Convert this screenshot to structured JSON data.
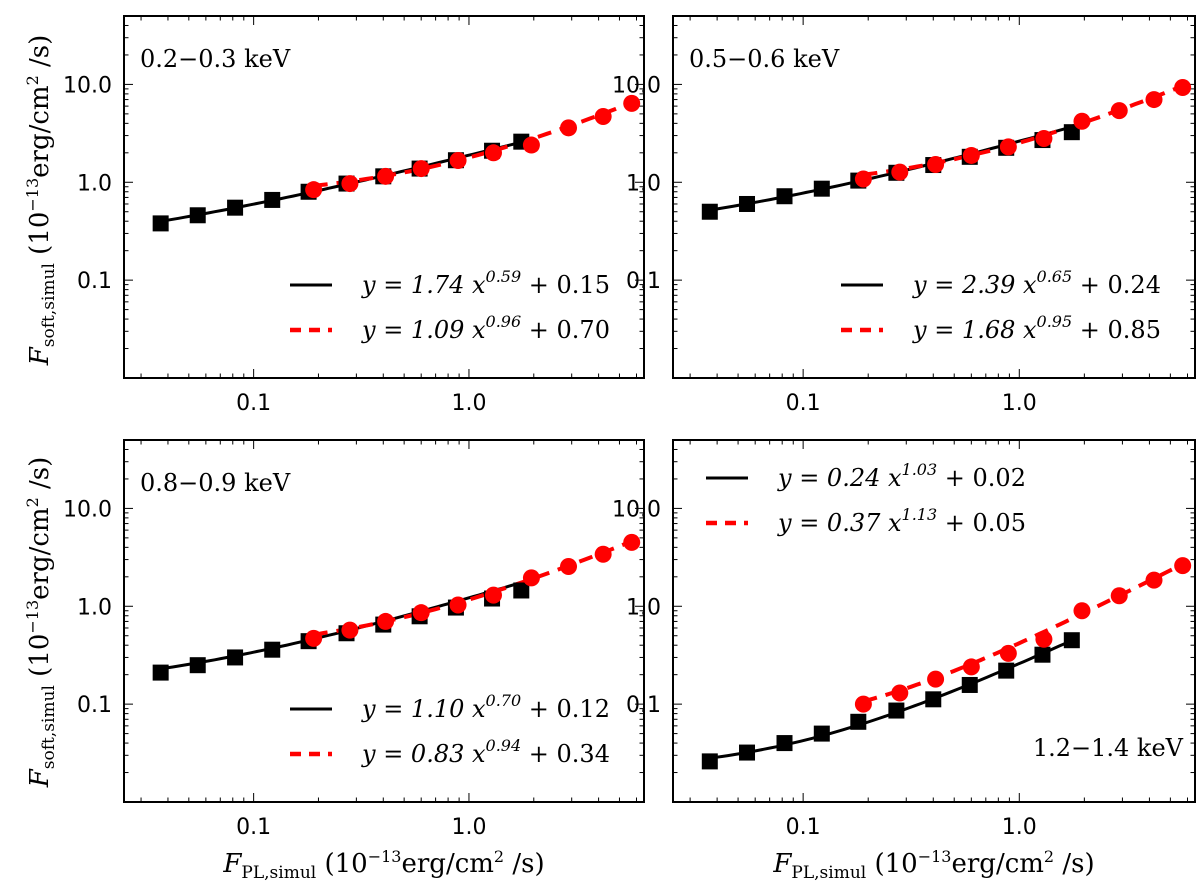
{
  "figure": {
    "ylabel": "F_soft,simul (10^-13 erg/cm^2 /s)",
    "xlabel": "F_PL,simul (10^-13 erg/cm^2 /s)",
    "ylabel_parts": {
      "main": "F",
      "sub": "soft,simul",
      "unit_open": " (10",
      "exp": "−13",
      "unit_rest": "erg/cm",
      "sq": "2",
      "unit_close": " /s)"
    },
    "xlabel_parts": {
      "main": "F",
      "sub": "PL,simul",
      "unit_open": " (10",
      "exp": "−13",
      "unit_rest": "erg/cm",
      "sq": "2",
      "unit_close": " /s)"
    }
  },
  "colors": {
    "fit_black": "#000000",
    "fit_red": "#ff0000"
  },
  "chart_data": [
    {
      "type": "scatter",
      "panel_label": "0.2−0.3 keV",
      "label_position": "top-left",
      "legend_position": "bottom-right",
      "xscale": "log",
      "yscale": "log",
      "xlim": [
        0.025,
        6.5
      ],
      "ylim": [
        0.01,
        50
      ],
      "xticks": [
        0.1,
        1.0
      ],
      "xtick_labels": [
        "0.1",
        "1.0"
      ],
      "yticks": [
        0.1,
        1.0,
        10.0
      ],
      "ytick_labels": [
        "0.1",
        "1.0",
        "10.0"
      ],
      "series": [
        {
          "name": "squares",
          "marker": "square",
          "color": "#000000",
          "x": [
            0.037,
            0.055,
            0.082,
            0.122,
            0.18,
            0.27,
            0.4,
            0.59,
            0.87,
            1.28,
            1.75
          ],
          "y": [
            0.38,
            0.46,
            0.55,
            0.66,
            0.8,
            0.97,
            1.15,
            1.38,
            1.68,
            2.1,
            2.6
          ]
        },
        {
          "name": "circles",
          "marker": "circle",
          "color": "#ff0000",
          "x": [
            0.19,
            0.28,
            0.41,
            0.6,
            0.89,
            1.3,
            1.95,
            2.9,
            4.2,
            5.7
          ],
          "y": [
            0.84,
            0.97,
            1.15,
            1.38,
            1.67,
            2.0,
            2.4,
            3.6,
            4.7,
            6.4
          ]
        }
      ],
      "fits": [
        {
          "name": "solid",
          "style": "solid",
          "color": "#000000",
          "a": 1.74,
          "b": 0.59,
          "c": 0.15,
          "x_range": [
            0.037,
            1.75
          ],
          "label": {
            "coef": "y = 1.74 x",
            "exp": "0.59",
            "offset": " + 0.15"
          }
        },
        {
          "name": "dashed",
          "style": "dashed",
          "color": "#ff0000",
          "a": 1.09,
          "b": 0.96,
          "c": 0.7,
          "x_range": [
            0.19,
            5.7
          ],
          "label": {
            "coef": "y = 1.09 x",
            "exp": "0.96",
            "offset": " + 0.70"
          }
        }
      ]
    },
    {
      "type": "scatter",
      "panel_label": "0.5−0.6 keV",
      "label_position": "top-left",
      "legend_position": "bottom-right",
      "xscale": "log",
      "yscale": "log",
      "xlim": [
        0.025,
        6.5
      ],
      "ylim": [
        0.01,
        50
      ],
      "xticks": [
        0.1,
        1.0
      ],
      "xtick_labels": [
        "0.1",
        "1.0"
      ],
      "yticks": [
        0.1,
        1.0,
        10.0
      ],
      "ytick_labels": [
        "0.1",
        "1.0",
        "10.0"
      ],
      "series": [
        {
          "name": "squares",
          "marker": "square",
          "color": "#000000",
          "x": [
            0.037,
            0.055,
            0.082,
            0.122,
            0.18,
            0.27,
            0.4,
            0.59,
            0.87,
            1.28,
            1.75
          ],
          "y": [
            0.5,
            0.6,
            0.72,
            0.86,
            1.04,
            1.25,
            1.5,
            1.82,
            2.25,
            2.7,
            3.25
          ]
        },
        {
          "name": "circles",
          "marker": "circle",
          "color": "#ff0000",
          "x": [
            0.19,
            0.28,
            0.41,
            0.6,
            0.89,
            1.3,
            1.95,
            2.9,
            4.2,
            5.7
          ],
          "y": [
            1.08,
            1.27,
            1.52,
            1.88,
            2.3,
            2.8,
            4.2,
            5.4,
            7.0,
            9.3
          ]
        }
      ],
      "fits": [
        {
          "name": "solid",
          "style": "solid",
          "color": "#000000",
          "a": 2.39,
          "b": 0.65,
          "c": 0.24,
          "x_range": [
            0.037,
            1.75
          ],
          "label": {
            "coef": "y = 2.39 x",
            "exp": "0.65",
            "offset": " + 0.24"
          }
        },
        {
          "name": "dashed",
          "style": "dashed",
          "color": "#ff0000",
          "a": 1.68,
          "b": 0.95,
          "c": 0.85,
          "x_range": [
            0.19,
            5.7
          ],
          "label": {
            "coef": "y = 1.68 x",
            "exp": "0.95",
            "offset": " + 0.85"
          }
        }
      ]
    },
    {
      "type": "scatter",
      "panel_label": "0.8−0.9 keV",
      "label_position": "top-left",
      "legend_position": "bottom-right",
      "xscale": "log",
      "yscale": "log",
      "xlim": [
        0.025,
        6.5
      ],
      "ylim": [
        0.01,
        50
      ],
      "xticks": [
        0.1,
        1.0
      ],
      "xtick_labels": [
        "0.1",
        "1.0"
      ],
      "yticks": [
        0.1,
        1.0,
        10.0
      ],
      "ytick_labels": [
        "0.1",
        "1.0",
        "10.0"
      ],
      "series": [
        {
          "name": "squares",
          "marker": "square",
          "color": "#000000",
          "x": [
            0.037,
            0.055,
            0.082,
            0.122,
            0.18,
            0.27,
            0.4,
            0.59,
            0.87,
            1.28,
            1.75
          ],
          "y": [
            0.21,
            0.25,
            0.3,
            0.36,
            0.44,
            0.53,
            0.65,
            0.79,
            0.97,
            1.2,
            1.45
          ]
        },
        {
          "name": "circles",
          "marker": "circle",
          "color": "#ff0000",
          "x": [
            0.19,
            0.28,
            0.41,
            0.6,
            0.89,
            1.3,
            1.95,
            2.9,
            4.2,
            5.7
          ],
          "y": [
            0.47,
            0.57,
            0.7,
            0.86,
            1.03,
            1.3,
            1.95,
            2.55,
            3.4,
            4.5
          ]
        }
      ],
      "fits": [
        {
          "name": "solid",
          "style": "solid",
          "color": "#000000",
          "a": 1.1,
          "b": 0.7,
          "c": 0.12,
          "x_range": [
            0.037,
            1.75
          ],
          "label": {
            "coef": "y = 1.10 x",
            "exp": "0.70",
            "offset": " + 0.12"
          }
        },
        {
          "name": "dashed",
          "style": "dashed",
          "color": "#ff0000",
          "a": 0.83,
          "b": 0.94,
          "c": 0.34,
          "x_range": [
            0.19,
            5.7
          ],
          "label": {
            "coef": "y = 0.83 x",
            "exp": "0.94",
            "offset": " + 0.34"
          }
        }
      ]
    },
    {
      "type": "scatter",
      "panel_label": "1.2−1.4 keV",
      "label_position": "bottom-right",
      "legend_position": "top-left",
      "xscale": "log",
      "yscale": "log",
      "xlim": [
        0.025,
        6.5
      ],
      "ylim": [
        0.01,
        50
      ],
      "xticks": [
        0.1,
        1.0
      ],
      "xtick_labels": [
        "0.1",
        "1.0"
      ],
      "yticks": [
        0.1,
        1.0,
        10.0
      ],
      "ytick_labels": [
        "0.1",
        "1.0",
        "10.0"
      ],
      "series": [
        {
          "name": "squares",
          "marker": "square",
          "color": "#000000",
          "x": [
            0.037,
            0.055,
            0.082,
            0.122,
            0.18,
            0.27,
            0.4,
            0.59,
            0.87,
            1.28,
            1.75
          ],
          "y": [
            0.026,
            0.032,
            0.04,
            0.05,
            0.066,
            0.086,
            0.112,
            0.157,
            0.22,
            0.32,
            0.45
          ]
        },
        {
          "name": "circles",
          "marker": "circle",
          "color": "#ff0000",
          "x": [
            0.19,
            0.28,
            0.41,
            0.6,
            0.89,
            1.3,
            1.95,
            2.9,
            4.2,
            5.7
          ],
          "y": [
            0.1,
            0.13,
            0.18,
            0.24,
            0.33,
            0.46,
            0.9,
            1.28,
            1.85,
            2.6
          ]
        }
      ],
      "fits": [
        {
          "name": "solid",
          "style": "solid",
          "color": "#000000",
          "a": 0.24,
          "b": 1.03,
          "c": 0.02,
          "x_range": [
            0.037,
            1.75
          ],
          "label": {
            "coef": "y = 0.24 x",
            "exp": "1.03",
            "offset": " + 0.02"
          }
        },
        {
          "name": "dashed",
          "style": "dashed",
          "color": "#ff0000",
          "a": 0.37,
          "b": 1.13,
          "c": 0.05,
          "x_range": [
            0.19,
            5.7
          ],
          "label": {
            "coef": "y = 0.37 x",
            "exp": "1.13",
            "offset": " + 0.05"
          }
        }
      ]
    }
  ]
}
